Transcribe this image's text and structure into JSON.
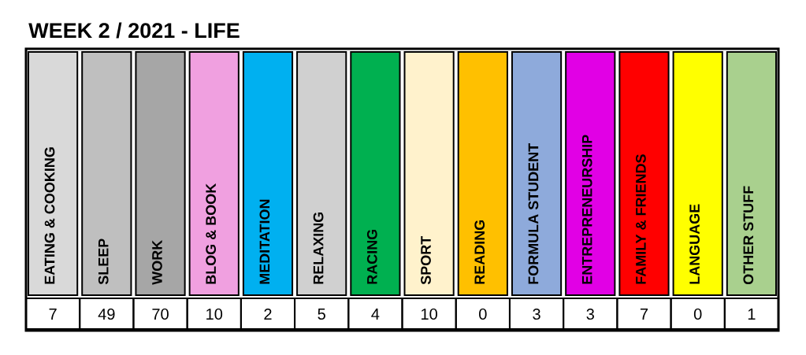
{
  "chart_data": {
    "type": "other",
    "title": "WEEK 2 / 2021 - LIFE",
    "categories": [
      "EATING & COOKING",
      "SLEEP",
      "WORK",
      "BLOG & BOOK",
      "MEDITATION",
      "RELAXING",
      "RACING",
      "SPORT",
      "READING",
      "FORMULA STUDENT",
      "ENTREPRENEURSHIP",
      "FAMILY & FRIENDS",
      "LANGUAGE",
      "OTHER STUFF"
    ],
    "values": [
      7,
      49,
      70,
      10,
      2,
      5,
      4,
      10,
      0,
      3,
      3,
      7,
      0,
      1
    ],
    "colors": [
      "#d9d9d9",
      "#bfbfbf",
      "#a6a6a6",
      "#f0a0e0",
      "#00b0f0",
      "#d0d0d0",
      "#00b050",
      "#fff2cc",
      "#ffc000",
      "#8eaadb",
      "#e100e5",
      "#ff0000",
      "#ffff00",
      "#a9d08e"
    ],
    "data_labels": true
  }
}
